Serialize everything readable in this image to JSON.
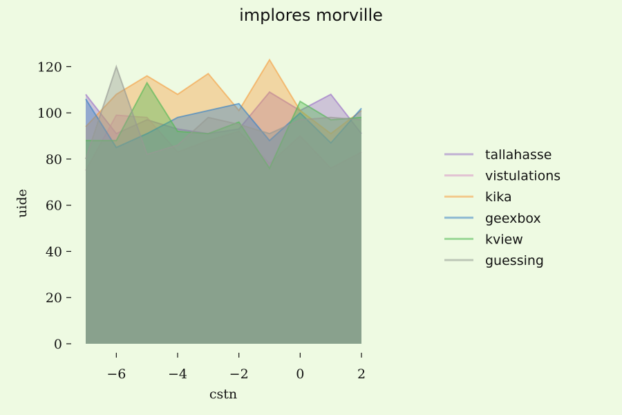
{
  "chart_data": {
    "type": "area",
    "title": "implores morville",
    "xlabel": "cstn",
    "ylabel": "uide",
    "x": [
      -7,
      -6,
      -5,
      -4,
      -3,
      -2,
      -1,
      0,
      1,
      2
    ],
    "xlim": [
      -7,
      2
    ],
    "ylim": [
      0,
      130
    ],
    "xticks": [
      -6,
      -4,
      -2,
      0,
      2
    ],
    "yticks": [
      0,
      20,
      40,
      60,
      80,
      100,
      120
    ],
    "grid": false,
    "legend_position": "right",
    "series": [
      {
        "name": "tallahasse",
        "color": "#9b72c7",
        "values": [
          108,
          91,
          97,
          93,
          91,
          93,
          109,
          101,
          108,
          91
        ]
      },
      {
        "name": "vistulations",
        "color": "#d993c7",
        "values": [
          75,
          99,
          98,
          83,
          88,
          92,
          78,
          90,
          76,
          83
        ]
      },
      {
        "name": "kika",
        "color": "#f5a146",
        "values": [
          94,
          108,
          116,
          108,
          117,
          101,
          123,
          101,
          91,
          101
        ]
      },
      {
        "name": "geexbox",
        "color": "#3b82c4",
        "values": [
          106,
          85,
          91,
          98,
          101,
          104,
          88,
          100,
          87,
          102
        ]
      },
      {
        "name": "kview",
        "color": "#56b957",
        "values": [
          88,
          88,
          113,
          92,
          91,
          96,
          76,
          105,
          97,
          98
        ]
      },
      {
        "name": "guessing",
        "color": "#969a94",
        "values": [
          80,
          120,
          82,
          86,
          98,
          95,
          91,
          97,
          98,
          97
        ]
      }
    ]
  }
}
